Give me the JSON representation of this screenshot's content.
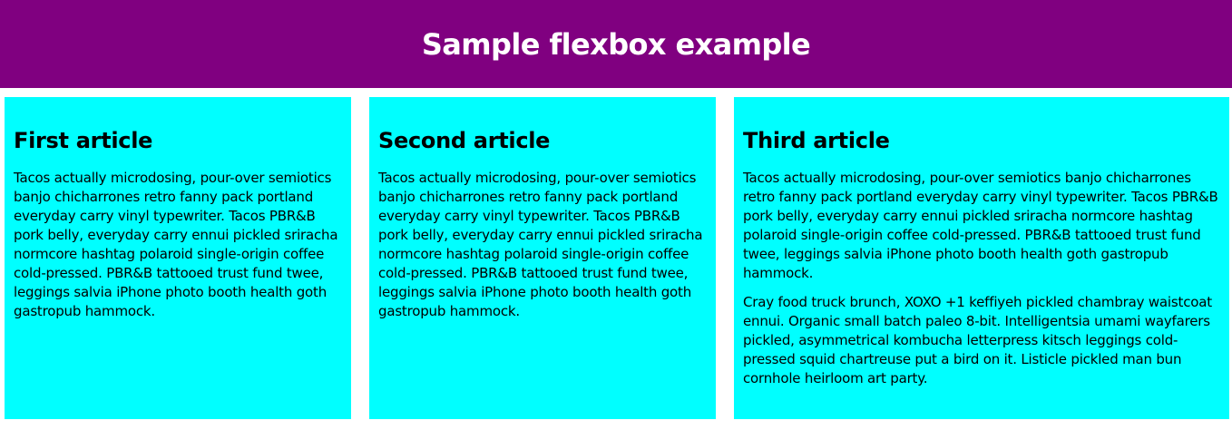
{
  "header": {
    "title": "Sample flexbox example"
  },
  "articles": [
    {
      "title": "First article",
      "paragraphs": [
        "Tacos actually microdosing, pour-over semiotics banjo chicharrones retro fanny pack portland everyday carry vinyl typewriter. Tacos PBR&B pork belly, everyday carry ennui pickled sriracha normcore hashtag polaroid single-origin coffee cold-pressed. PBR&B tattooed trust fund twee, leggings salvia iPhone photo booth health goth gastropub hammock."
      ]
    },
    {
      "title": "Second article",
      "paragraphs": [
        "Tacos actually microdosing, pour-over semiotics banjo chicharrones retro fanny pack portland everyday carry vinyl typewriter. Tacos PBR&B pork belly, everyday carry ennui pickled sriracha normcore hashtag polaroid single-origin coffee cold-pressed. PBR&B tattooed trust fund twee, leggings salvia iPhone photo booth health goth gastropub hammock."
      ]
    },
    {
      "title": "Third article",
      "paragraphs": [
        "Tacos actually microdosing, pour-over semiotics banjo chicharrones retro fanny pack portland everyday carry vinyl typewriter. Tacos PBR&B pork belly, everyday carry ennui pickled sriracha normcore hashtag polaroid single-origin coffee cold-pressed. PBR&B tattooed trust fund twee, leggings salvia iPhone photo booth health goth gastropub hammock.",
        "Cray food truck brunch, XOXO +1 keffiyeh pickled chambray waistcoat ennui. Organic small batch paleo 8-bit. Intelligentsia umami wayfarers pickled, asymmetrical kombucha letterpress kitsch leggings cold-pressed squid chartreuse put a bird on it. Listicle pickled man bun cornhole heirloom art party."
      ]
    }
  ],
  "colors": {
    "header_background": "#800080",
    "header_text": "#ffffff",
    "article_background": "#00ffff"
  }
}
